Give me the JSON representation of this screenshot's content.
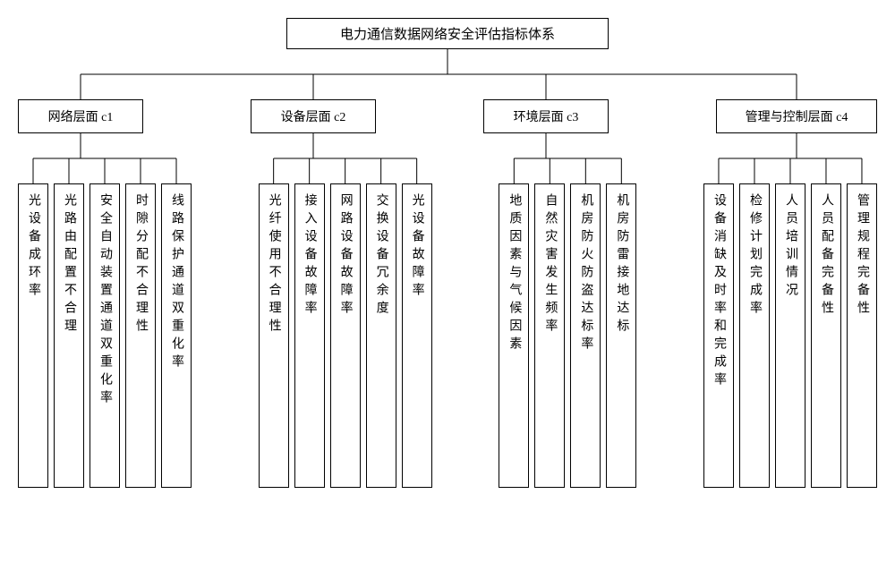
{
  "root_title": "电力通信数据网络安全评估指标体系",
  "line_color": "#000000",
  "background_color": "#ffffff",
  "categories": [
    {
      "id": "c1",
      "label": "网络层面 c1",
      "width": 140
    },
    {
      "id": "c2",
      "label": "设备层面 c2",
      "width": 140
    },
    {
      "id": "c3",
      "label": "环境层面 c3",
      "width": 140
    },
    {
      "id": "c4",
      "label": "管理与控制层面 c4",
      "width": 180
    }
  ],
  "leaf_groups": [
    {
      "category": "c1",
      "leaves": [
        "光设备成环率",
        "光路由配置不合理",
        "安全自动装置通道双重化率",
        "时隙分配不合理性",
        "线路保护通道双重化率"
      ]
    },
    {
      "category": "c2",
      "leaves": [
        "光纤使用不合理性",
        "接入设备故障率",
        "网路设备故障率",
        "交换设备冗余度",
        "光设备故障率"
      ]
    },
    {
      "category": "c3",
      "leaves": [
        "地质因素与气候因素",
        "自然灾害发生频率",
        "机房防火防盗达标率",
        "机房防雷接地达标"
      ]
    },
    {
      "category": "c4",
      "leaves": [
        "设备消缺及时率和完成率",
        "检修计划完成率",
        "人员培训情况",
        "人员配备完备性",
        "管理规程完备性"
      ]
    }
  ]
}
